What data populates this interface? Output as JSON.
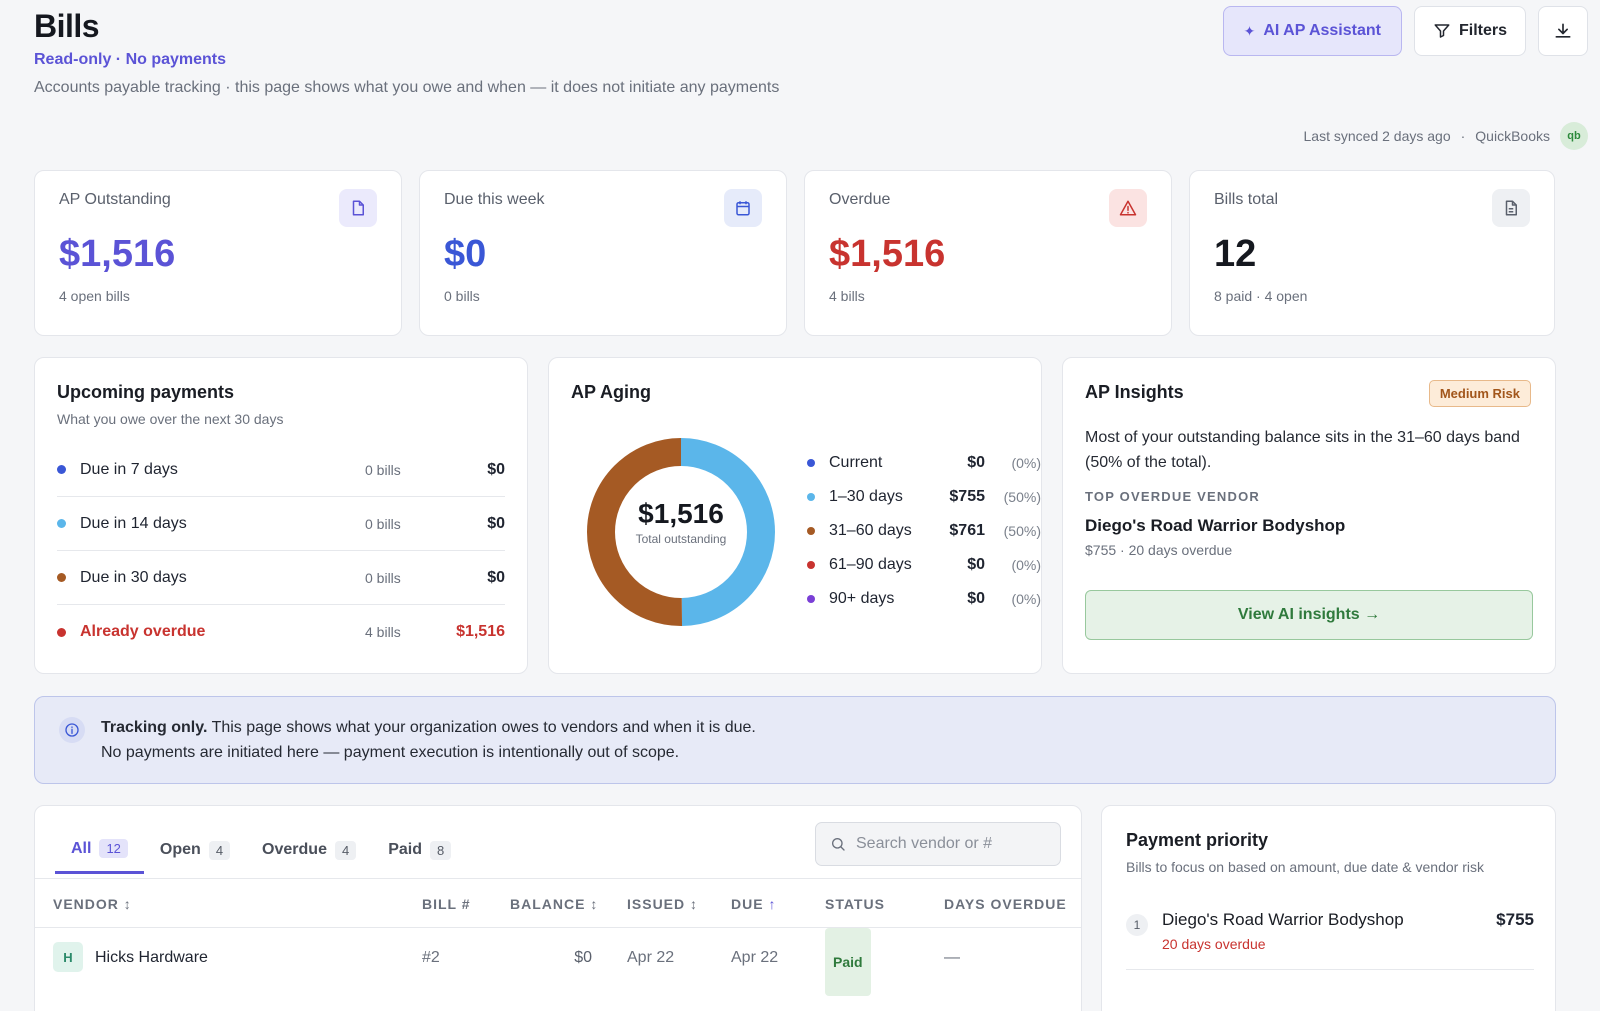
{
  "header": {
    "title": "Bills",
    "readonly": "Read-only · No payments",
    "subtitle": "Accounts payable tracking · this page shows what you owe and when — it does not initiate any payments"
  },
  "actions": {
    "ai_label": "AI AP Assistant",
    "filters_label": "Filters"
  },
  "sync": {
    "text": "Last synced 2 days ago",
    "sep": "·",
    "source": "QuickBooks",
    "badge": "qb"
  },
  "kpis": [
    {
      "label": "AP Outstanding",
      "value": "$1,516",
      "sub": "4 open bills",
      "color": "#5b53d6",
      "icon": "document-icon"
    },
    {
      "label": "Due this week",
      "value": "$0",
      "sub": "0 bills",
      "color": "#3a57d6",
      "icon": "calendar-icon"
    },
    {
      "label": "Overdue",
      "value": "$1,516",
      "sub": "4 bills",
      "color": "#c8332f",
      "icon": "warning-icon"
    },
    {
      "label": "Bills total",
      "value": "12",
      "sub": "8 paid · 4 open",
      "color": "#15181f",
      "icon": "file-text-icon"
    }
  ],
  "upcoming": {
    "title": "Upcoming payments",
    "sub": "What you owe over the next 30 days",
    "rows": [
      {
        "label": "Due in 7 days",
        "count": "0 bills",
        "amount": "$0",
        "color": "#3a57d6"
      },
      {
        "label": "Due in 14 days",
        "count": "0 bills",
        "amount": "$0",
        "color": "#5bb6ea"
      },
      {
        "label": "Due in 30 days",
        "count": "0 bills",
        "amount": "$0",
        "color": "#a55a24"
      },
      {
        "label": "Already overdue",
        "count": "4 bills",
        "amount": "$1,516",
        "color": "#c8332f"
      }
    ]
  },
  "aging": {
    "title": "AP Aging",
    "center_value": "$1,516",
    "center_label": "Total outstanding",
    "legend": [
      {
        "label": "Current",
        "amount": "$0",
        "pct": "(0%)",
        "color": "#3a57d6"
      },
      {
        "label": "1–30 days",
        "amount": "$755",
        "pct": "(50%)",
        "color": "#5bb6ea"
      },
      {
        "label": "31–60 days",
        "amount": "$761",
        "pct": "(50%)",
        "color": "#a55a24"
      },
      {
        "label": "61–90 days",
        "amount": "$0",
        "pct": "(0%)",
        "color": "#c8332f"
      },
      {
        "label": "90+ days",
        "amount": "$0",
        "pct": "(0%)",
        "color": "#7a3fd6"
      }
    ],
    "chart_data": {
      "type": "pie",
      "categories": [
        "Current",
        "1–30 days",
        "31–60 days",
        "61–90 days",
        "90+ days"
      ],
      "values": [
        0,
        755,
        761,
        0,
        0
      ],
      "colors": [
        "#3a57d6",
        "#5bb6ea",
        "#a55a24",
        "#c8332f",
        "#7a3fd6"
      ],
      "title": "AP Aging"
    }
  },
  "insights": {
    "title": "AP Insights",
    "risk": "Medium Risk",
    "body": "Most of your outstanding balance sits in the 31–60 days band (50% of the total).",
    "top_label": "TOP OVERDUE VENDOR",
    "vendor": "Diego's Road Warrior Bodyshop",
    "vendor_sub": "$755 · 20 days overdue",
    "cta": "View AI insights →"
  },
  "info": {
    "strong": "Tracking only.",
    "line1": " This page shows what your organization owes to vendors and when it is due.",
    "line2": "No payments are initiated here — payment execution is intentionally out of scope."
  },
  "bills": {
    "tabs": [
      {
        "label": "All",
        "count": "12"
      },
      {
        "label": "Open",
        "count": "4"
      },
      {
        "label": "Overdue",
        "count": "4"
      },
      {
        "label": "Paid",
        "count": "8"
      }
    ],
    "search_placeholder": "Search vendor or #",
    "columns": {
      "vendor": "VENDOR ↕",
      "bill": "BILL #",
      "balance": "BALANCE ↕",
      "issued": "ISSUED ↕",
      "due": "DUE",
      "due_arrow": "↑",
      "status": "STATUS",
      "days": "DAYS OVERDUE"
    },
    "rows": [
      {
        "initial": "H",
        "vendor": "Hicks Hardware",
        "bill": "#2",
        "balance": "$0",
        "issued": "Apr 22",
        "due": "Apr 22",
        "status": "Paid",
        "days": "—"
      }
    ]
  },
  "priority": {
    "title": "Payment priority",
    "sub": "Bills to focus on based on amount, due date & vendor risk",
    "items": [
      {
        "rank": "1",
        "vendor": "Diego's Road Warrior Bodyshop",
        "note": "20 days overdue",
        "amount": "$755"
      }
    ]
  }
}
